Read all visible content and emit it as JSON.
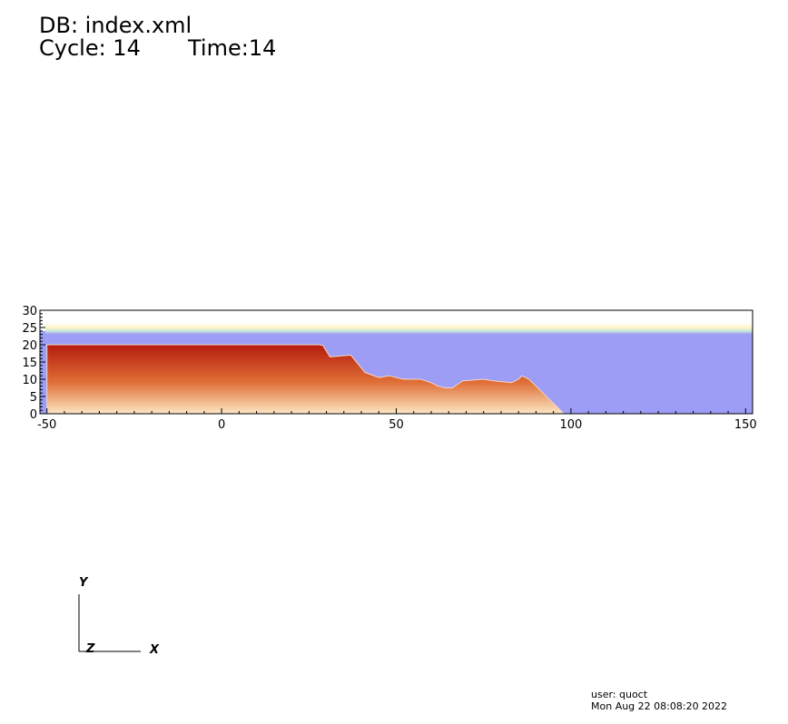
{
  "header": {
    "db_line": "DB: index.xml",
    "cycle_line": "Cycle: 14",
    "time_line": "Time:14"
  },
  "footer": {
    "user": "user: quoct",
    "date": "Mon Aug 22 08:08:20 2022"
  },
  "triad": {
    "x_label": "X",
    "y_label": "Y",
    "z_label": "Z"
  },
  "colors": {
    "water": "#9d9df6",
    "soil_dark": "#b51c0c",
    "soil_mid": "#e07038",
    "soil_light": "#fbe7c3",
    "free_surface": "#c9ecd7"
  },
  "chart_data": {
    "type": "heatmap",
    "title": "",
    "xlabel": "",
    "ylabel": "",
    "xlim": [
      -52,
      152
    ],
    "ylim": [
      0,
      30
    ],
    "x_ticks": [
      -50,
      0,
      50,
      100,
      150
    ],
    "y_ticks": [
      0,
      5,
      10,
      15,
      20,
      25,
      30
    ],
    "x_tick_labels": [
      "-50",
      "0",
      "50",
      "100",
      "150"
    ],
    "y_tick_labels": [
      "0",
      "5",
      "10",
      "15",
      "20",
      "25",
      "30"
    ],
    "grid": false,
    "water_surface_level": 24,
    "soil_profile": {
      "x": [
        -50,
        -50,
        -36,
        11,
        28,
        29,
        31,
        37,
        41,
        45,
        48,
        52,
        57,
        60,
        62,
        64,
        66,
        69,
        75,
        78,
        83,
        85,
        86,
        88,
        92,
        96,
        98
      ],
      "y": [
        0,
        20,
        20,
        20,
        20,
        19.8,
        16.5,
        17,
        12,
        10.5,
        11,
        10,
        10,
        9,
        8,
        7.5,
        7.5,
        9.5,
        10,
        9.5,
        9,
        10,
        11,
        10,
        6,
        2,
        0
      ]
    }
  }
}
